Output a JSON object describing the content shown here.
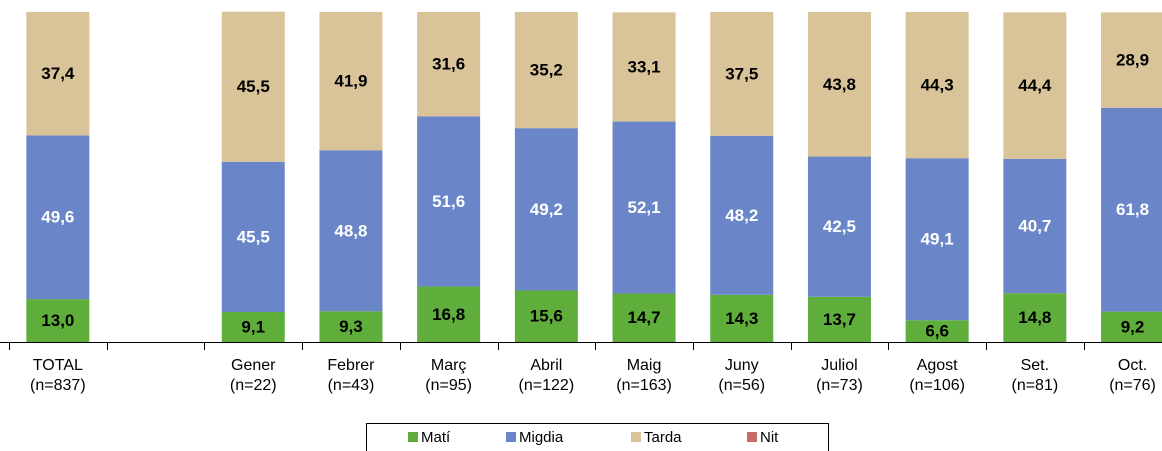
{
  "chart_data": {
    "type": "stacked_bar",
    "categories": [
      [
        "TOTAL",
        "(n=837)"
      ],
      null,
      [
        "Gener",
        "(n=22)"
      ],
      [
        "Febrer",
        "(n=43)"
      ],
      [
        "Març",
        "(n=95)"
      ],
      [
        "Abril",
        "(n=122)"
      ],
      [
        "Maig",
        "(n=163)"
      ],
      [
        "Juny",
        "(n=56)"
      ],
      [
        "Juliol",
        "(n=73)"
      ],
      [
        "Agost",
        "(n=106)"
      ],
      [
        "Set.",
        "(n=81)"
      ],
      [
        "Oct.",
        "(n=76)"
      ]
    ],
    "series": [
      {
        "name": "Matí",
        "color": "#5fae3c",
        "label_color": "#000000",
        "values": [
          13.0,
          null,
          9.1,
          9.3,
          16.8,
          15.6,
          14.7,
          14.3,
          13.7,
          6.6,
          14.8,
          9.2
        ],
        "value_labels": [
          "13,0",
          null,
          "9,1",
          "9,3",
          "16,8",
          "15,6",
          "14,7",
          "14,3",
          "13,7",
          "6,6",
          "14,8",
          "9,2"
        ]
      },
      {
        "name": "Migdia",
        "color": "#6a86c8",
        "label_color": "#ffffff",
        "values": [
          49.6,
          null,
          45.5,
          48.8,
          51.6,
          49.2,
          52.1,
          48.2,
          42.5,
          49.1,
          40.7,
          61.8
        ],
        "value_labels": [
          "49,6",
          null,
          "45,5",
          "48,8",
          "51,6",
          "49,2",
          "52,1",
          "48,2",
          "42,5",
          "49,1",
          "40,7",
          "61,8"
        ]
      },
      {
        "name": "Tarda",
        "color": "#d9c49a",
        "label_color": "#000000",
        "values": [
          37.4,
          null,
          45.5,
          41.9,
          31.6,
          35.2,
          33.1,
          37.5,
          43.8,
          44.3,
          44.4,
          28.9
        ],
        "value_labels": [
          "37,4",
          null,
          "45,5",
          "41,9",
          "31,6",
          "35,2",
          "33,1",
          "37,5",
          "43,8",
          "44,3",
          "44,4",
          "28,9"
        ]
      },
      {
        "name": "Nit",
        "color": "#c86a6a",
        "label_color": "#000000",
        "values": [
          0,
          null,
          0,
          0,
          0,
          0,
          0,
          0,
          0,
          0,
          0,
          0
        ]
      }
    ],
    "ylim": [
      0,
      100
    ],
    "legend": "bottom"
  }
}
